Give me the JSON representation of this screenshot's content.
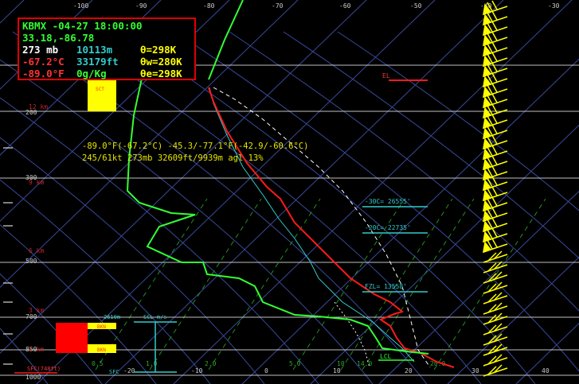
{
  "readout": {
    "station_time": "KBMX -04-27 18:00:00",
    "latlon": "33.18,-86.78",
    "pressure": "273 mb",
    "height_m": "10113m",
    "theta": "θ=298K",
    "temp_c": "-67.2°C",
    "height_ft": "33179ft",
    "theta_w": "θw=280K",
    "temp_f": "-89.0°F",
    "mixing": "0g/Kg",
    "theta_e": "θe=298K"
  },
  "cursor_info": {
    "line1": "-89.0°F(-67.2°C) -45.3/-77.1°F(-42.9/-60.6°C)",
    "line2": "245/61kt  273mb  32609ft/9939m agl  13%"
  },
  "colors": {
    "temperature": "#ff1a1a",
    "dewpoint": "#33ff33",
    "wetbulb": "#33cccc",
    "parcel": "#ffffff",
    "wind": "#ffff00",
    "isotherm": "#3a4a9a",
    "dry_adiabat": "#3a4a9a",
    "mixing_ratio": "#1f8f1f",
    "isobar": "#ffffff",
    "level_label": "#33cccc",
    "height_label": "#cc2222"
  },
  "top_temp_labels": [
    "-100",
    "-90",
    "-80",
    "-70",
    "-60",
    "-50",
    "-40",
    "-30"
  ],
  "bottom_temp_labels": [
    "-20",
    "-10",
    "0",
    "10",
    "20",
    "30",
    "40"
  ],
  "pressure_labels": [
    "200",
    "300",
    "500",
    "700",
    "850",
    "1000"
  ],
  "height_labels": [
    "12 km",
    "9 km",
    "6 km",
    "3 km",
    "1 km"
  ],
  "mixing_ratio_labels": [
    "0.5",
    "1.0",
    "2.0",
    "5.0",
    "10",
    "14.0",
    "20.0"
  ],
  "level_labels": {
    "el": "EL",
    "m30": "-30C= 26555'",
    "m20": "-20C= 22735'",
    "fzl": "FZL= 13558'",
    "lcl": "LCL",
    "sfc_left": "SFC",
    "sfc_red": "SFC(748ft)"
  },
  "hodo_labels": {
    "top_left": "2610m",
    "top_mid": "SCL m/s"
  },
  "cloud_labels": {
    "sct": "SCT",
    "bkn1": "BKN",
    "bkn2": "BKN"
  },
  "chart_data": {
    "type": "line",
    "y_axis": "pressure (mb), log scale",
    "x_axis": "temperature (°C), skewed",
    "ylim": [
      1000,
      100
    ],
    "temperature_profile": [
      {
        "p": 1000,
        "t": 30
      },
      {
        "p": 950,
        "t": 25
      },
      {
        "p": 900,
        "t": 20
      },
      {
        "p": 850,
        "t": 16
      },
      {
        "p": 800,
        "t": 12
      },
      {
        "p": 750,
        "t": 10
      },
      {
        "p": 700,
        "t": 8
      },
      {
        "p": 600,
        "t": -2
      },
      {
        "p": 500,
        "t": -10
      },
      {
        "p": 400,
        "t": -22
      },
      {
        "p": 300,
        "t": -40
      },
      {
        "p": 250,
        "t": -50
      },
      {
        "p": 200,
        "t": -58
      },
      {
        "p": 150,
        "t": -68
      },
      {
        "p": 100,
        "t": -75
      }
    ],
    "dewpoint_profile": [
      {
        "p": 1000,
        "t": 15
      },
      {
        "p": 950,
        "t": 14
      },
      {
        "p": 900,
        "t": 12
      },
      {
        "p": 850,
        "t": 10
      },
      {
        "p": 800,
        "t": 6
      },
      {
        "p": 750,
        "t": -2
      },
      {
        "p": 700,
        "t": -10
      },
      {
        "p": 600,
        "t": -22
      },
      {
        "p": 500,
        "t": -35
      },
      {
        "p": 400,
        "t": -45
      },
      {
        "p": 300,
        "t": -60
      },
      {
        "p": 200,
        "t": -75
      }
    ]
  }
}
